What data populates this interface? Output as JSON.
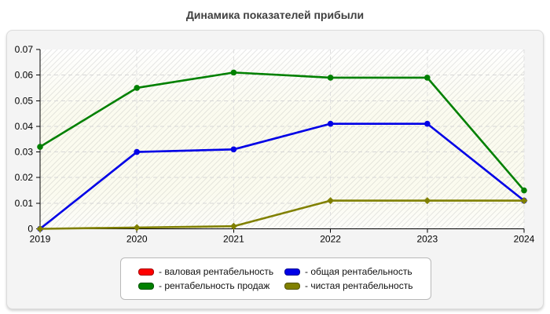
{
  "title": "Динамика показателей прибыли",
  "chart_data": {
    "type": "line",
    "title": "Динамика показателей прибыли",
    "xlabel": "",
    "ylabel": "",
    "categories": [
      "2019",
      "2020",
      "2021",
      "2022",
      "2023",
      "2024"
    ],
    "ylim": [
      0,
      0.07
    ],
    "y_tick_values": [
      0,
      0.01,
      0.02,
      0.03,
      0.04,
      0.05,
      0.06,
      0.07
    ],
    "y_tick_labels": [
      "0",
      "0.01",
      "0.02",
      "0.03",
      "0.04",
      "0.05",
      "0.06",
      "0.07"
    ],
    "grid": "dashed horizontal and vertical gridlines",
    "legend_position": "bottom",
    "series": [
      {
        "name": "валовая рентабельность",
        "color": "#ff0000",
        "marker": "circle",
        "visible": false,
        "values": []
      },
      {
        "name": "общая рентабельность",
        "color": "#0000e6",
        "marker": "circle",
        "visible": true,
        "values": [
          0,
          0.03,
          0.031,
          0.041,
          0.041,
          0.011
        ]
      },
      {
        "name": "рентабельность продаж",
        "color": "#008000",
        "marker": "circle",
        "visible": true,
        "values": [
          0.032,
          0.055,
          0.061,
          0.059,
          0.059,
          0.015
        ]
      },
      {
        "name": "чистая рентабельность",
        "color": "#808000",
        "marker": "diamond",
        "visible": true,
        "values": [
          0,
          0.0005,
          0.001,
          0.011,
          0.011,
          0.011
        ]
      }
    ]
  },
  "legend": {
    "items": [
      {
        "label": "- валовая рентабельность",
        "color": "#ff0000"
      },
      {
        "label": "- общая рентабельность",
        "color": "#0000e6"
      },
      {
        "label": "- рентабельность продаж",
        "color": "#008000"
      },
      {
        "label": "- чистая рентабельность",
        "color": "#808000"
      }
    ]
  }
}
